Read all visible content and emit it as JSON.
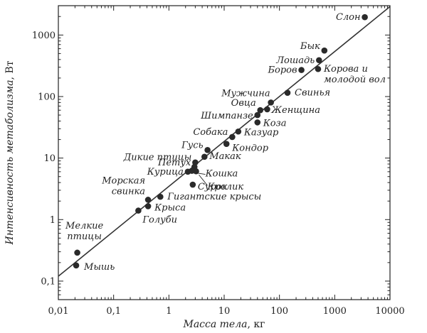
{
  "chart_data": {
    "type": "scatter",
    "title": "",
    "xlabel": "Масса тела",
    "xlabel_unit": ", кг",
    "ylabel": "Интенсивность метаболизма",
    "ylabel_unit": ", Вт",
    "xscale": "log",
    "yscale": "log",
    "xlim": [
      0.01,
      10000
    ],
    "ylim": [
      0.05,
      3000
    ],
    "xticks": [
      {
        "value": 0.01,
        "label": "0,01"
      },
      {
        "value": 0.1,
        "label": "0,1"
      },
      {
        "value": 1,
        "label": "1"
      },
      {
        "value": 10,
        "label": "10"
      },
      {
        "value": 100,
        "label": "100"
      },
      {
        "value": 1000,
        "label": "1000"
      },
      {
        "value": 10000,
        "label": "10000"
      }
    ],
    "yticks": [
      {
        "value": 0.1,
        "label": "0,1"
      },
      {
        "value": 1,
        "label": "1"
      },
      {
        "value": 10,
        "label": "10"
      },
      {
        "value": 100,
        "label": "100"
      },
      {
        "value": 1000,
        "label": "1000"
      }
    ],
    "grid": false,
    "fit_line": {
      "x": [
        0.01,
        10000
      ],
      "y": [
        0.12,
        2900
      ]
    },
    "points": [
      {
        "x": 3500,
        "y": 1950,
        "label": "Слон"
      },
      {
        "x": 650,
        "y": 560,
        "label": "Бык"
      },
      {
        "x": 520,
        "y": 390,
        "label": "Лошадь"
      },
      {
        "x": 250,
        "y": 270,
        "label": "Боров"
      },
      {
        "x": 500,
        "y": 280,
        "label": "Корова и молодой вол"
      },
      {
        "x": 140,
        "y": 115,
        "label": "Свинья"
      },
      {
        "x": 70,
        "y": 80,
        "label": "Мужчина"
      },
      {
        "x": 45,
        "y": 60,
        "label": "Овца"
      },
      {
        "x": 40,
        "y": 50,
        "label": "Шимпанзе"
      },
      {
        "x": 60,
        "y": 62,
        "label": "Женщина"
      },
      {
        "x": 40,
        "y": 38,
        "label": "Коза"
      },
      {
        "x": 18,
        "y": 27,
        "label": "Казуар"
      },
      {
        "x": 14,
        "y": 22,
        "label": "Собака"
      },
      {
        "x": 11,
        "y": 17,
        "label": "Кондор"
      },
      {
        "x": 5,
        "y": 13.5,
        "label": "Гусь"
      },
      {
        "x": 4.4,
        "y": 10.5,
        "label": "Макак"
      },
      {
        "x": 3,
        "y": 8.5,
        "label": "Дикие птицы"
      },
      {
        "x": 2.9,
        "y": 7.2,
        "label": "Петух"
      },
      {
        "x": 2.2,
        "y": 6,
        "label": "Курица"
      },
      {
        "x": 2.6,
        "y": 6.2,
        "label": "Кошка"
      },
      {
        "x": 3.1,
        "y": 6.1,
        "label": "Кролик"
      },
      {
        "x": 2.7,
        "y": 3.7,
        "label": "Сурок"
      },
      {
        "x": 0.7,
        "y": 2.35,
        "label": "Гигантские крысы"
      },
      {
        "x": 0.42,
        "y": 2.1,
        "label": "Морская свинка"
      },
      {
        "x": 0.42,
        "y": 1.65,
        "label": "Крыса"
      },
      {
        "x": 0.28,
        "y": 1.4,
        "label": "Голуби"
      },
      {
        "x": 0.022,
        "y": 0.29,
        "label": "Мелкие птицы"
      },
      {
        "x": 0.021,
        "y": 0.18,
        "label": "Мышь"
      }
    ]
  }
}
